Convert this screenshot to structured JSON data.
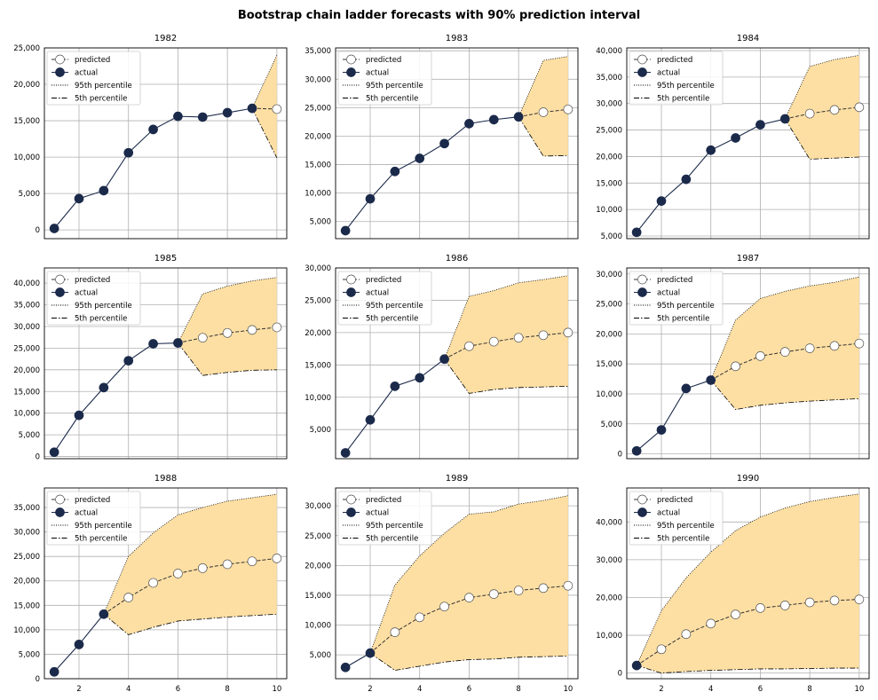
{
  "chart_data": {
    "type": "line",
    "title": "Bootstrap chain ladder forecasts with 90% prediction interval",
    "x": [
      1,
      2,
      3,
      4,
      5,
      6,
      7,
      8,
      9,
      10
    ],
    "x_ticks": [
      "2",
      "4",
      "6",
      "8",
      "10"
    ],
    "legend": [
      "predicted",
      "actual",
      "95th percentile",
      "5th percentile"
    ],
    "colors": {
      "actual": "#1b2a4a",
      "band": "#fedfa3",
      "grid": "#b0b0b0"
    },
    "panels": [
      {
        "title": "1982",
        "ylim": [
          -1200,
          25000
        ],
        "y_ticks": [
          0,
          5000,
          10000,
          15000,
          20000,
          25000
        ],
        "y_tick_labels": [
          "0",
          "5,000",
          "10,000",
          "15,000",
          "20,000",
          "25,000"
        ],
        "actual": [
          200,
          4300,
          5400,
          10600,
          13800,
          15600,
          15500,
          16100,
          16700
        ],
        "predicted": [
          16700,
          16600
        ],
        "p95": [
          16700,
          24000
        ],
        "p5": [
          16700,
          9900
        ],
        "forecast_start": 9
      },
      {
        "title": "1983",
        "ylim": [
          2000,
          35500
        ],
        "y_ticks": [
          5000,
          10000,
          15000,
          20000,
          25000,
          30000,
          35000
        ],
        "y_tick_labels": [
          "5,000",
          "10,000",
          "15,000",
          "20,000",
          "25,000",
          "30,000",
          "35,000"
        ],
        "actual": [
          3400,
          9000,
          13800,
          16100,
          18700,
          22200,
          22900,
          23400
        ],
        "predicted": [
          23400,
          24200,
          24700
        ],
        "p95": [
          23400,
          33300,
          34000
        ],
        "p5": [
          23400,
          16500,
          16600
        ],
        "forecast_start": 8
      },
      {
        "title": "1984",
        "ylim": [
          4500,
          40500
        ],
        "y_ticks": [
          5000,
          10000,
          15000,
          20000,
          25000,
          30000,
          35000,
          40000
        ],
        "y_tick_labels": [
          "5,000",
          "10,000",
          "15,000",
          "20,000",
          "25,000",
          "30,000",
          "35,000",
          "40,000"
        ],
        "actual": [
          5700,
          11600,
          15700,
          21200,
          23500,
          26000,
          27100
        ],
        "predicted": [
          27100,
          28100,
          28800,
          29300
        ],
        "p95": [
          27100,
          37000,
          38300,
          39100
        ],
        "p5": [
          27100,
          19500,
          19700,
          19900
        ],
        "forecast_start": 7
      },
      {
        "title": "1985",
        "ylim": [
          -500,
          43500
        ],
        "y_ticks": [
          0,
          5000,
          10000,
          15000,
          20000,
          25000,
          30000,
          35000,
          40000
        ],
        "y_tick_labels": [
          "0",
          "5,000",
          "10,000",
          "15,000",
          "20,000",
          "25,000",
          "30,000",
          "35,000",
          "40,000"
        ],
        "actual": [
          1000,
          9500,
          15900,
          22100,
          26000,
          26200
        ],
        "predicted": [
          26200,
          27400,
          28500,
          29200,
          29800
        ],
        "p95": [
          26200,
          37500,
          39300,
          40500,
          41300
        ],
        "p5": [
          26200,
          18700,
          19400,
          19900,
          20000
        ],
        "forecast_start": 6
      },
      {
        "title": "1986",
        "ylim": [
          500,
          30000
        ],
        "y_ticks": [
          5000,
          10000,
          15000,
          20000,
          25000,
          30000
        ],
        "y_tick_labels": [
          "5,000",
          "10,000",
          "15,000",
          "20,000",
          "25,000",
          "30,000"
        ],
        "actual": [
          1400,
          6500,
          11700,
          13000,
          15900
        ],
        "predicted": [
          15900,
          17900,
          18600,
          19200,
          19600,
          20000
        ],
        "p95": [
          15900,
          25600,
          26500,
          27700,
          28200,
          28800
        ],
        "p5": [
          15900,
          10600,
          11200,
          11500,
          11600,
          11700
        ],
        "forecast_start": 5
      },
      {
        "title": "1987",
        "ylim": [
          -800,
          31000
        ],
        "y_ticks": [
          0,
          5000,
          10000,
          15000,
          20000,
          25000,
          30000
        ],
        "y_tick_labels": [
          "0",
          "5,000",
          "10,000",
          "15,000",
          "20,000",
          "25,000",
          "30,000"
        ],
        "actual": [
          500,
          4000,
          10900,
          12300
        ],
        "predicted": [
          12300,
          14600,
          16300,
          17000,
          17600,
          18000,
          18400
        ],
        "p95": [
          12300,
          22300,
          25900,
          27100,
          28000,
          28600,
          29500
        ],
        "p5": [
          12300,
          7400,
          8100,
          8500,
          8800,
          9000,
          9200
        ],
        "forecast_start": 4
      },
      {
        "title": "1988",
        "ylim": [
          0,
          39000
        ],
        "y_ticks": [
          0,
          5000,
          10000,
          15000,
          20000,
          25000,
          30000,
          35000
        ],
        "y_tick_labels": [
          "0",
          "5,000",
          "10,000",
          "15,000",
          "20,000",
          "25,000",
          "30,000",
          "35,000"
        ],
        "actual": [
          1400,
          7000,
          13200
        ],
        "predicted": [
          13200,
          16600,
          19600,
          21500,
          22600,
          23400,
          24000,
          24600
        ],
        "p95": [
          13200,
          25000,
          29800,
          33500,
          35000,
          36300,
          37000,
          37700
        ],
        "p5": [
          13200,
          9000,
          10500,
          11800,
          12200,
          12600,
          12900,
          13200
        ],
        "forecast_start": 3
      },
      {
        "title": "1989",
        "ylim": [
          1000,
          33000
        ],
        "y_ticks": [
          5000,
          10000,
          15000,
          20000,
          25000,
          30000
        ],
        "y_tick_labels": [
          "5,000",
          "10,000",
          "15,000",
          "20,000",
          "25,000",
          "30,000"
        ],
        "actual": [
          2900,
          5300
        ],
        "predicted": [
          5300,
          8800,
          11300,
          13100,
          14600,
          15200,
          15800,
          16200,
          16600
        ],
        "p95": [
          5300,
          16700,
          21600,
          25400,
          28600,
          29000,
          30300,
          30900,
          31700
        ],
        "p5": [
          5300,
          2400,
          3100,
          3800,
          4200,
          4300,
          4600,
          4700,
          4800
        ],
        "forecast_start": 2
      },
      {
        "title": "1990",
        "ylim": [
          -1500,
          49000
        ],
        "y_ticks": [
          0,
          10000,
          20000,
          30000,
          40000
        ],
        "y_tick_labels": [
          "0",
          "10,000",
          "20,000",
          "30,000",
          "40,000"
        ],
        "actual": [
          2000
        ],
        "predicted": [
          2000,
          6300,
          10300,
          13100,
          15500,
          17200,
          17900,
          18700,
          19200,
          19500
        ],
        "p95": [
          2000,
          16500,
          25200,
          32000,
          37700,
          41300,
          43700,
          45400,
          46500,
          47400
        ],
        "p5": [
          2000,
          0,
          400,
          700,
          900,
          1100,
          1100,
          1200,
          1300,
          1300
        ],
        "forecast_start": 1
      }
    ]
  }
}
